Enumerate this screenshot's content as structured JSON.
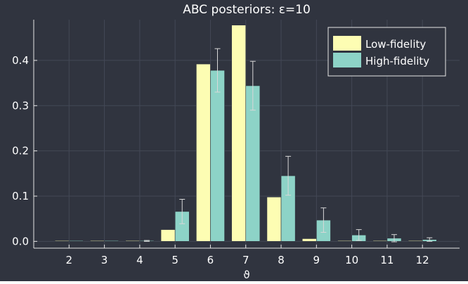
{
  "chart_data": {
    "type": "bar",
    "title": "ABC posteriors: ε=10",
    "xlabel": "ϑ",
    "ylabel": "",
    "categories": [
      "2",
      "3",
      "4",
      "5",
      "6",
      "7",
      "8",
      "9",
      "10",
      "11",
      "12"
    ],
    "x": [
      2,
      3,
      4,
      5,
      6,
      7,
      8,
      9,
      10,
      11,
      12
    ],
    "xticks": [
      "2",
      "3",
      "4",
      "5",
      "6",
      "7",
      "8",
      "9",
      "10",
      "11",
      "12"
    ],
    "yticks": [
      "0.0",
      "0.1",
      "0.2",
      "0.3",
      "0.4"
    ],
    "ytick_values": [
      0,
      0.1,
      0.2,
      0.3,
      0.4
    ],
    "xlim": [
      1,
      13.05
    ],
    "ylim": [
      -0.015,
      0.49
    ],
    "grid": true,
    "legend_position": "top-right",
    "series": [
      {
        "name": "Low-fidelity",
        "color": "#fdfdb3",
        "values": [
          0.0005,
          0.0005,
          0.0005,
          0.026,
          0.392,
          0.478,
          0.098,
          0.006,
          0.0005,
          0.0005,
          0.0005
        ],
        "error": [
          0,
          0,
          0,
          0,
          0,
          0,
          0,
          0,
          0,
          0,
          0
        ]
      },
      {
        "name": "High-fidelity",
        "color": "#8dd3c7",
        "values": [
          0.0005,
          0.0005,
          0.001,
          0.066,
          0.378,
          0.344,
          0.145,
          0.047,
          0.014,
          0.007,
          0.004
        ],
        "error": [
          0,
          0,
          0.001,
          0.027,
          0.048,
          0.054,
          0.043,
          0.027,
          0.012,
          0.008,
          0.004
        ]
      }
    ]
  },
  "colors": {
    "background": "#30343f",
    "grid": "#434856",
    "axis": "#e6e6e6",
    "text": "#ffffff",
    "errorbar": "#d8d8d8"
  }
}
